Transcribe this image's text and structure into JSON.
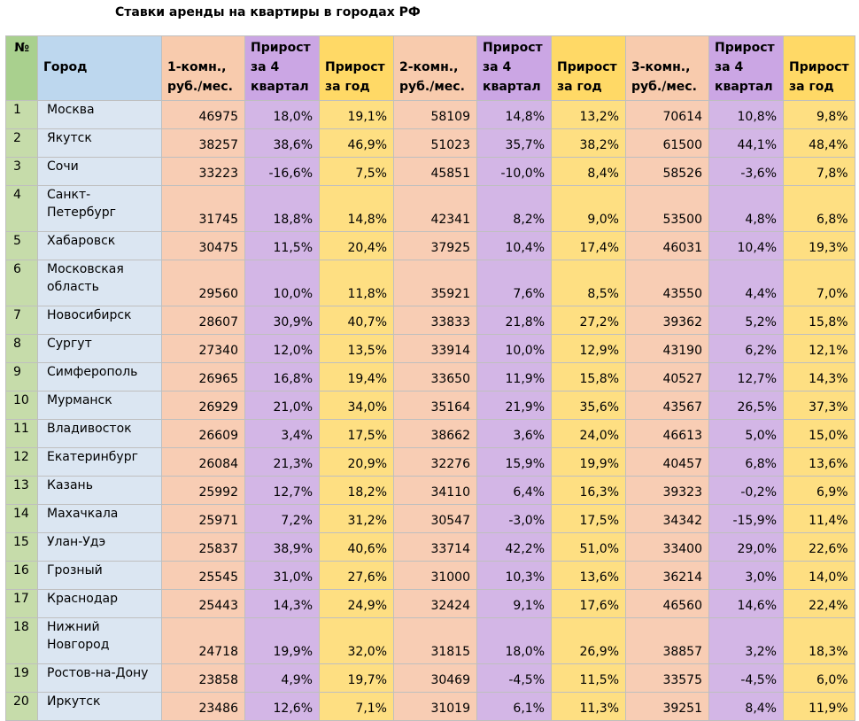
{
  "title": "Ставки аренды на квартиры в городах РФ",
  "headers": {
    "num": "№",
    "city": "Город",
    "p1": "1-комн., руб./мес.",
    "q1": "Прирост за 4 квартал",
    "y1": "Прирост за год",
    "p2": "2-комн., руб./мес.",
    "q2": "Прирост за 4 квартал",
    "y2": "Прирост за год",
    "p3": "3-комн., руб./мес.",
    "q3": "Прирост за 4 квартал",
    "y3": "Прирост за год"
  },
  "rows": [
    {
      "num": "1",
      "city": "Москва",
      "p1": "46975",
      "q1": "18,0%",
      "y1": "19,1%",
      "p2": "58109",
      "q2": "14,8%",
      "y2": "13,2%",
      "p3": "70614",
      "q3": "10,8%",
      "y3": "9,8%"
    },
    {
      "num": "2",
      "city": "Якутск",
      "p1": "38257",
      "q1": "38,6%",
      "y1": "46,9%",
      "p2": "51023",
      "q2": "35,7%",
      "y2": "38,2%",
      "p3": "61500",
      "q3": "44,1%",
      "y3": "48,4%"
    },
    {
      "num": "3",
      "city": "Сочи",
      "p1": "33223",
      "q1": "-16,6%",
      "y1": "7,5%",
      "p2": "45851",
      "q2": "-10,0%",
      "y2": "8,4%",
      "p3": "58526",
      "q3": "-3,6%",
      "y3": "7,8%"
    },
    {
      "num": "4",
      "city": "Санкт-Петербург",
      "p1": "31745",
      "q1": "18,8%",
      "y1": "14,8%",
      "p2": "42341",
      "q2": "8,2%",
      "y2": "9,0%",
      "p3": "53500",
      "q3": "4,8%",
      "y3": "6,8%"
    },
    {
      "num": "5",
      "city": "Хабаровск",
      "p1": "30475",
      "q1": "11,5%",
      "y1": "20,4%",
      "p2": "37925",
      "q2": "10,4%",
      "y2": "17,4%",
      "p3": "46031",
      "q3": "10,4%",
      "y3": "19,3%"
    },
    {
      "num": "6",
      "city": "Московская область",
      "p1": "29560",
      "q1": "10,0%",
      "y1": "11,8%",
      "p2": "35921",
      "q2": "7,6%",
      "y2": "8,5%",
      "p3": "43550",
      "q3": "4,4%",
      "y3": "7,0%"
    },
    {
      "num": "7",
      "city": "Новосибирск",
      "p1": "28607",
      "q1": "30,9%",
      "y1": "40,7%",
      "p2": "33833",
      "q2": "21,8%",
      "y2": "27,2%",
      "p3": "39362",
      "q3": "5,2%",
      "y3": "15,8%"
    },
    {
      "num": "8",
      "city": "Сургут",
      "p1": "27340",
      "q1": "12,0%",
      "y1": "13,5%",
      "p2": "33914",
      "q2": "10,0%",
      "y2": "12,9%",
      "p3": "43190",
      "q3": "6,2%",
      "y3": "12,1%"
    },
    {
      "num": "9",
      "city": "Симферополь",
      "p1": "26965",
      "q1": "16,8%",
      "y1": "19,4%",
      "p2": "33650",
      "q2": "11,9%",
      "y2": "15,8%",
      "p3": "40527",
      "q3": "12,7%",
      "y3": "14,3%"
    },
    {
      "num": "10",
      "city": "Мурманск",
      "p1": "26929",
      "q1": "21,0%",
      "y1": "34,0%",
      "p2": "35164",
      "q2": "21,9%",
      "y2": "35,6%",
      "p3": "43567",
      "q3": "26,5%",
      "y3": "37,3%"
    },
    {
      "num": "11",
      "city": "Владивосток",
      "p1": "26609",
      "q1": "3,4%",
      "y1": "17,5%",
      "p2": "38662",
      "q2": "3,6%",
      "y2": "24,0%",
      "p3": "46613",
      "q3": "5,0%",
      "y3": "15,0%"
    },
    {
      "num": "12",
      "city": "Екатеринбург",
      "p1": "26084",
      "q1": "21,3%",
      "y1": "20,9%",
      "p2": "32276",
      "q2": "15,9%",
      "y2": "19,9%",
      "p3": "40457",
      "q3": "6,8%",
      "y3": "13,6%"
    },
    {
      "num": "13",
      "city": "Казань",
      "p1": "25992",
      "q1": "12,7%",
      "y1": "18,2%",
      "p2": "34110",
      "q2": "6,4%",
      "y2": "16,3%",
      "p3": "39323",
      "q3": "-0,2%",
      "y3": "6,9%"
    },
    {
      "num": "14",
      "city": "Махачкала",
      "p1": "25971",
      "q1": "7,2%",
      "y1": "31,2%",
      "p2": "30547",
      "q2": "-3,0%",
      "y2": "17,5%",
      "p3": "34342",
      "q3": "-15,9%",
      "y3": "11,4%"
    },
    {
      "num": "15",
      "city": "Улан-Удэ",
      "p1": "25837",
      "q1": "38,9%",
      "y1": "40,6%",
      "p2": "33714",
      "q2": "42,2%",
      "y2": "51,0%",
      "p3": "33400",
      "q3": "29,0%",
      "y3": "22,6%"
    },
    {
      "num": "16",
      "city": "Грозный",
      "p1": "25545",
      "q1": "31,0%",
      "y1": "27,6%",
      "p2": "31000",
      "q2": "10,3%",
      "y2": "13,6%",
      "p3": "36214",
      "q3": "3,0%",
      "y3": "14,0%"
    },
    {
      "num": "17",
      "city": "Краснодар",
      "p1": "25443",
      "q1": "14,3%",
      "y1": "24,9%",
      "p2": "32424",
      "q2": "9,1%",
      "y2": "17,6%",
      "p3": "46560",
      "q3": "14,6%",
      "y3": "22,4%"
    },
    {
      "num": "18",
      "city": "Нижний Новгород",
      "p1": "24718",
      "q1": "19,9%",
      "y1": "32,0%",
      "p2": "31815",
      "q2": "18,0%",
      "y2": "26,9%",
      "p3": "38857",
      "q3": "3,2%",
      "y3": "18,3%"
    },
    {
      "num": "19",
      "city": "Ростов-на-Дону",
      "p1": "23858",
      "q1": "4,9%",
      "y1": "19,7%",
      "p2": "30469",
      "q2": "-4,5%",
      "y2": "11,5%",
      "p3": "33575",
      "q3": "-4,5%",
      "y3": "6,0%"
    },
    {
      "num": "20",
      "city": "Иркутск",
      "p1": "23486",
      "q1": "12,6%",
      "y1": "7,1%",
      "p2": "31019",
      "q2": "6,1%",
      "y2": "11,3%",
      "p3": "39251",
      "q3": "8,4%",
      "y3": "11,9%"
    }
  ]
}
